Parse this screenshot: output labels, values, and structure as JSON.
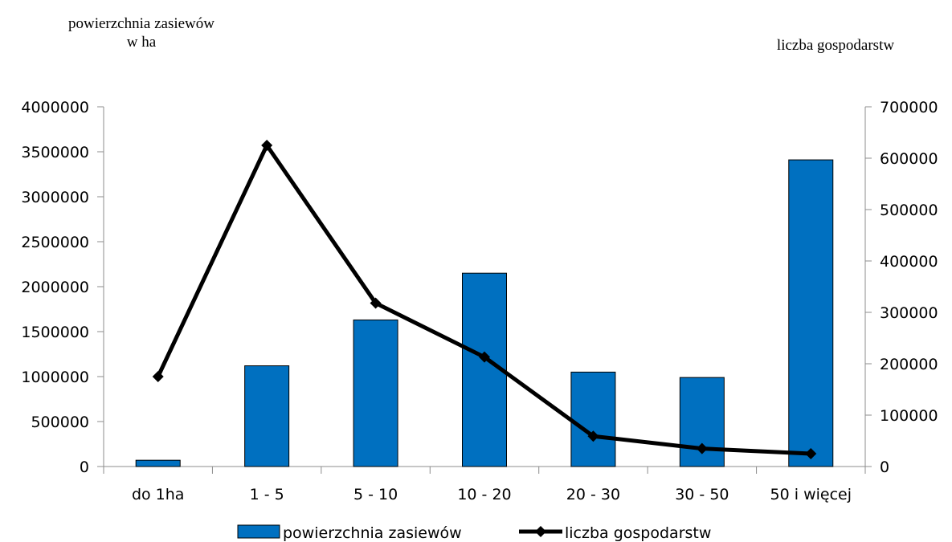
{
  "chart_data": {
    "type": "bar",
    "categories": [
      "do 1ha",
      "1 - 5",
      "5 - 10",
      "10 - 20",
      "20 - 30",
      "30 - 50",
      "50 i więcej"
    ],
    "y_left_title_lines": [
      "powierzchnia zasiewów",
      "w ha"
    ],
    "y_right_title": "liczba gospodarstw",
    "y_left_range": [
      0,
      4000000
    ],
    "y_left_ticks": [
      0,
      500000,
      1000000,
      1500000,
      2000000,
      2500000,
      3000000,
      3500000,
      4000000
    ],
    "y_right_range": [
      0,
      700000
    ],
    "y_right_ticks": [
      0,
      100000,
      200000,
      300000,
      400000,
      500000,
      600000,
      700000
    ],
    "series": [
      {
        "name": "powierzchnia zasiewów",
        "type": "bar",
        "axis": "left",
        "color": "#0070C0",
        "values": [
          70000,
          1120000,
          1630000,
          2150000,
          1050000,
          990000,
          3410000
        ]
      },
      {
        "name": "liczba gospodarstw",
        "type": "line",
        "axis": "right",
        "color": "#000000",
        "marker": "diamond",
        "values": [
          175000,
          625000,
          318000,
          213000,
          59000,
          35000,
          25000
        ]
      }
    ],
    "legend_position": "bottom",
    "grid": false
  }
}
